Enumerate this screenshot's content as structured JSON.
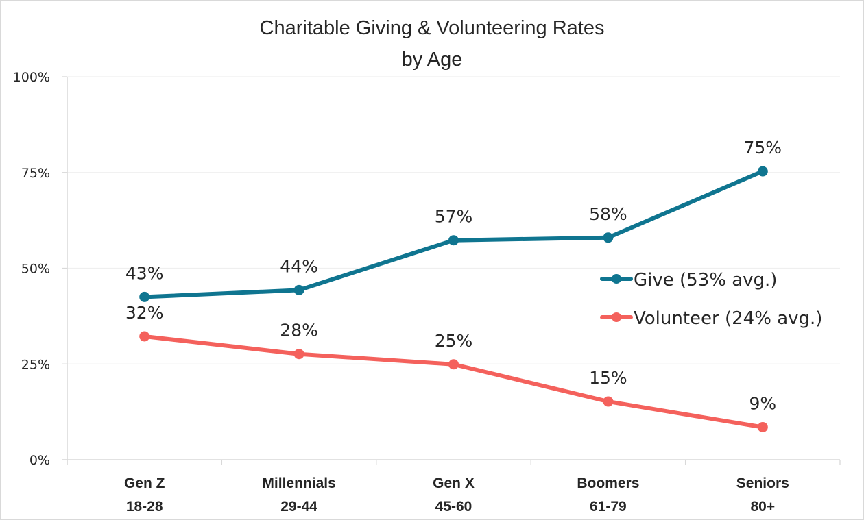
{
  "chart_data": {
    "type": "line",
    "title_lines": [
      "Charitable Giving & Volunteering Rates",
      "by Age"
    ],
    "categories": [
      {
        "name": "Gen Z",
        "range": "18-28"
      },
      {
        "name": "Millennials",
        "range": "29-44"
      },
      {
        "name": "Gen X",
        "range": "45-60"
      },
      {
        "name": "Boomers",
        "range": "61-79"
      },
      {
        "name": "Seniors",
        "range": "80+"
      }
    ],
    "ylim": [
      0,
      100
    ],
    "yticks": [
      0,
      25,
      50,
      75,
      100
    ],
    "ytick_labels": [
      "0%",
      "25%",
      "50%",
      "75%",
      "100%"
    ],
    "grid": true,
    "legend_position": "right",
    "series": [
      {
        "name": "Give (53% avg.)",
        "color": "#0f7590",
        "values": [
          42.5,
          44.3,
          57.3,
          58.0,
          75.3
        ],
        "labels": [
          "43%",
          "44%",
          "57%",
          "58%",
          "75%"
        ]
      },
      {
        "name": "Volunteer (24% avg.)",
        "color": "#f4615c",
        "values": [
          32.2,
          27.6,
          24.9,
          15.2,
          8.5
        ],
        "labels": [
          "32%",
          "28%",
          "25%",
          "15%",
          "9%"
        ]
      }
    ]
  }
}
